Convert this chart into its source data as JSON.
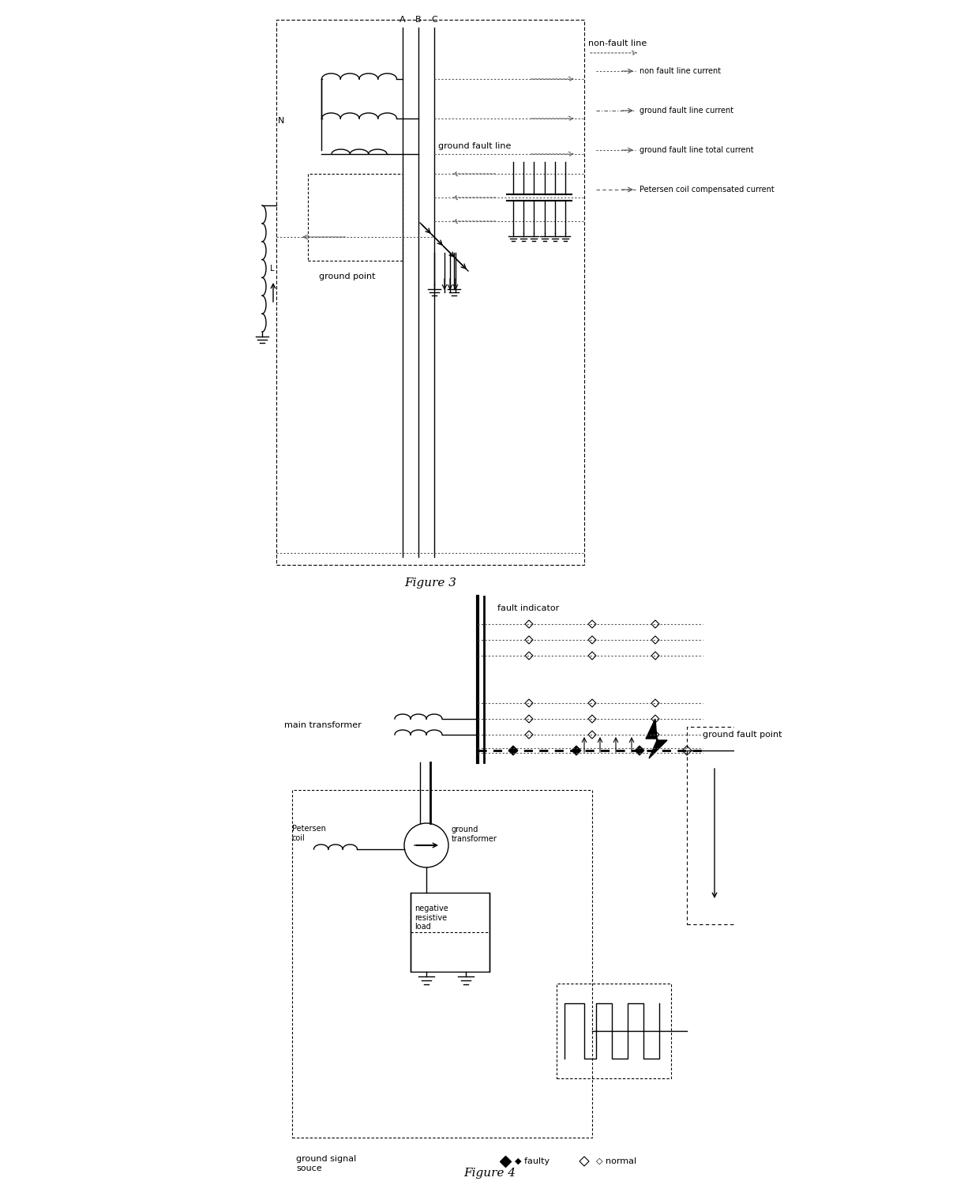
{
  "bg_color": "#ffffff",
  "line_color": "#000000",
  "gray_color": "#555555",
  "fig3_title": "Figure 3",
  "fig4_title": "Figure 4",
  "legend_labels": [
    "non fault line current",
    "ground fault line current",
    "ground fault line total current",
    "Petersen coil compensated current"
  ]
}
